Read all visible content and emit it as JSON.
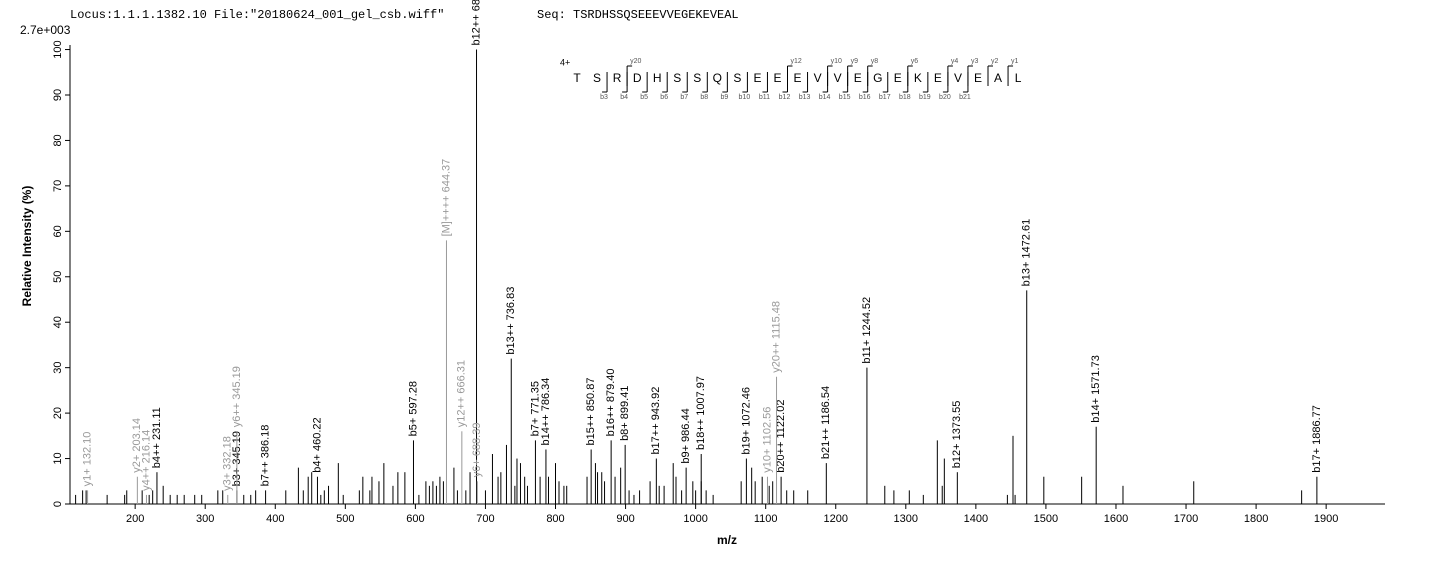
{
  "header": {
    "locus": "Locus:1.1.1.1382.10 File:\"20180624_001_gel_csb.wiff\"",
    "seq": "Seq: TSRDHSSQSEEEVVEGEKEVEAL",
    "scale": "2.7e+003"
  },
  "sequence": {
    "charge": "4+",
    "residues": [
      "T",
      "S",
      "R",
      "D",
      "H",
      "S",
      "S",
      "Q",
      "S",
      "E",
      "E",
      "E",
      "V",
      "V",
      "E",
      "G",
      "E",
      "K",
      "E",
      "V",
      "E",
      "A",
      "L"
    ],
    "y_ions": [
      null,
      null,
      "y20",
      null,
      null,
      null,
      null,
      null,
      null,
      null,
      "y12",
      null,
      "y10",
      "y9",
      "y8",
      null,
      "y6",
      null,
      "y4",
      "y3",
      "y2",
      "y1"
    ],
    "b_ions": [
      null,
      "b3",
      "b4",
      "b5",
      "b6",
      "b7",
      "b8",
      "b9",
      "b10",
      "b11",
      "b12",
      "b13",
      "b14",
      "b15",
      "b16",
      "b17",
      "b18",
      "b19",
      "b20",
      "b21",
      null,
      null
    ]
  },
  "chart_data": {
    "type": "spectrum",
    "xlabel": "m/z",
    "ylabel": "Relative Intensity (%)",
    "xlim": [
      107,
      1984
    ],
    "ylim": [
      0,
      101
    ],
    "xticks": [
      200,
      300,
      400,
      500,
      600,
      700,
      800,
      900,
      1000,
      1100,
      1200,
      1300,
      1400,
      1500,
      1600,
      1700,
      1800,
      1900
    ],
    "yticks": [
      0,
      10,
      20,
      30,
      40,
      50,
      60,
      70,
      80,
      90,
      100
    ],
    "peak_color": "#000000",
    "peaks": {
      "x": [
        115,
        125,
        130,
        160,
        185,
        188,
        210,
        220,
        225,
        240,
        250,
        260,
        270,
        285,
        295,
        318,
        325,
        355,
        365,
        372,
        415,
        433,
        440,
        447,
        452,
        465,
        470,
        476,
        490,
        497,
        520,
        525,
        535,
        538,
        548,
        555,
        568,
        575,
        585,
        605,
        615,
        620,
        625,
        630,
        635,
        640,
        655,
        660,
        672,
        678,
        700,
        710,
        718,
        722,
        730,
        742,
        745,
        750,
        756,
        760,
        778,
        790,
        800,
        805,
        812,
        816,
        845,
        857,
        860,
        866,
        870,
        885,
        893,
        905,
        912,
        920,
        935,
        948,
        955,
        968,
        972,
        980,
        996,
        1000,
        1008,
        1015,
        1025,
        1065,
        1080,
        1085,
        1095,
        1105,
        1110,
        1130,
        1140,
        1160,
        1270,
        1283,
        1305,
        1325,
        1345,
        1352,
        1355,
        1445,
        1453,
        1456,
        1497,
        1551,
        1610,
        1711,
        1865
      ],
      "values": [
        2,
        3,
        3,
        2,
        2,
        3,
        3,
        2,
        3,
        4,
        2,
        2,
        2,
        2,
        2,
        3,
        3,
        2,
        2,
        3,
        3,
        8,
        3,
        6,
        7,
        2,
        3,
        4,
        9,
        2,
        3,
        6,
        3,
        6,
        5,
        9,
        4,
        7,
        7,
        2,
        5,
        4,
        5,
        4,
        6,
        5,
        8,
        3,
        3,
        7,
        3,
        11,
        6,
        7,
        13,
        4,
        10,
        9,
        6,
        4,
        6,
        6,
        9,
        5,
        4,
        4,
        6,
        9,
        7,
        7,
        5,
        6,
        8,
        3,
        2,
        3,
        5,
        4,
        4,
        9,
        6,
        3,
        5,
        3,
        5,
        3,
        2,
        5,
        8,
        5,
        6,
        4,
        5,
        3,
        3,
        3,
        4,
        3,
        3,
        2,
        14,
        4,
        10,
        2,
        15,
        2,
        6,
        6,
        4,
        5,
        3
      ]
    },
    "labeled_peaks": [
      {
        "x": 687.26,
        "value": 100,
        "label": "b12++ 687.26",
        "color": "#000000"
      },
      {
        "x": 1472.61,
        "value": 47,
        "label": "b13+ 1472.61",
        "color": "#000000"
      },
      {
        "x": 736.83,
        "value": 32,
        "label": "b13++ 736.83",
        "color": "#000000"
      },
      {
        "x": 1244.52,
        "value": 30,
        "label": "b11+ 1244.52",
        "color": "#000000"
      },
      {
        "x": 1571.73,
        "value": 17,
        "label": "b14+ 1571.73",
        "color": "#000000"
      },
      {
        "x": 597.28,
        "value": 14,
        "label": "b5+ 597.28",
        "color": "#000000"
      },
      {
        "x": 850.87,
        "value": 12,
        "label": "b15++ 850.87",
        "color": "#000000"
      },
      {
        "x": 879.4,
        "value": 14,
        "label": "b16++ 879.40",
        "color": "#000000"
      },
      {
        "x": 899.41,
        "value": 13,
        "label": "b8+ 899.41",
        "color": "#000000"
      },
      {
        "x": 771.35,
        "value": 14,
        "label": "b7+ 771.35",
        "color": "#000000"
      },
      {
        "x": 786.34,
        "value": 12,
        "label": "b14++ 786.34",
        "color": "#000000"
      },
      {
        "x": 943.92,
        "value": 10,
        "label": "b17++ 943.92",
        "color": "#000000"
      },
      {
        "x": 986.44,
        "value": 8,
        "label": "b9+ 986.44",
        "color": "#000000"
      },
      {
        "x": 1007.97,
        "value": 11,
        "label": "b18++ 1007.97",
        "color": "#000000"
      },
      {
        "x": 1072.46,
        "value": 10,
        "label": "b19+ 1072.46",
        "color": "#000000"
      },
      {
        "x": 1122.02,
        "value": 6,
        "label": "b20++ 1122.02",
        "color": "#000000"
      },
      {
        "x": 1186.54,
        "value": 9,
        "label": "b21++ 1186.54",
        "color": "#000000"
      },
      {
        "x": 1373.55,
        "value": 7,
        "label": "b12+ 1373.55",
        "color": "#000000"
      },
      {
        "x": 1886.77,
        "value": 6,
        "label": "b17+ 1886.77",
        "color": "#000000"
      },
      {
        "x": 460.22,
        "value": 6,
        "label": "b4+ 460.22",
        "color": "#000000"
      },
      {
        "x": 386.18,
        "value": 3,
        "label": "b7++ 386.18",
        "color": "#000000"
      },
      {
        "x": 345.19,
        "value": 3,
        "label": "b3+ 345.19",
        "color": "#000000"
      },
      {
        "x": 231.11,
        "value": 7,
        "label": "b4++ 231.11",
        "color": "#000000"
      },
      {
        "x": 132.1,
        "value": 3,
        "label": "y1+ 132.10",
        "color": "#999999"
      },
      {
        "x": 203.14,
        "value": 6,
        "label": "y2+ 203.14",
        "color": "#999999"
      },
      {
        "x": 216.14,
        "value": 2,
        "label": "y4++ 216.14",
        "color": "#999999"
      },
      {
        "x": 332.18,
        "value": 2,
        "label": "y3+ 332.18",
        "color": "#999999"
      },
      {
        "x": 345.19,
        "value": 16,
        "label": "y6++ 345.19",
        "color": "#999999"
      },
      {
        "x": 644.37,
        "value": 58,
        "label": "[M]++++ 644.37",
        "color": "#999999"
      },
      {
        "x": 666.31,
        "value": 16,
        "label": "y12++ 666.31",
        "color": "#999999"
      },
      {
        "x": 688.39,
        "value": 5,
        "label": "y6+ 688.39",
        "color": "#999999"
      },
      {
        "x": 1102.56,
        "value": 6,
        "label": "y10+ 1102.56",
        "color": "#999999"
      },
      {
        "x": 1115.48,
        "value": 28,
        "label": "y20++ 1115.48",
        "color": "#999999"
      }
    ]
  }
}
